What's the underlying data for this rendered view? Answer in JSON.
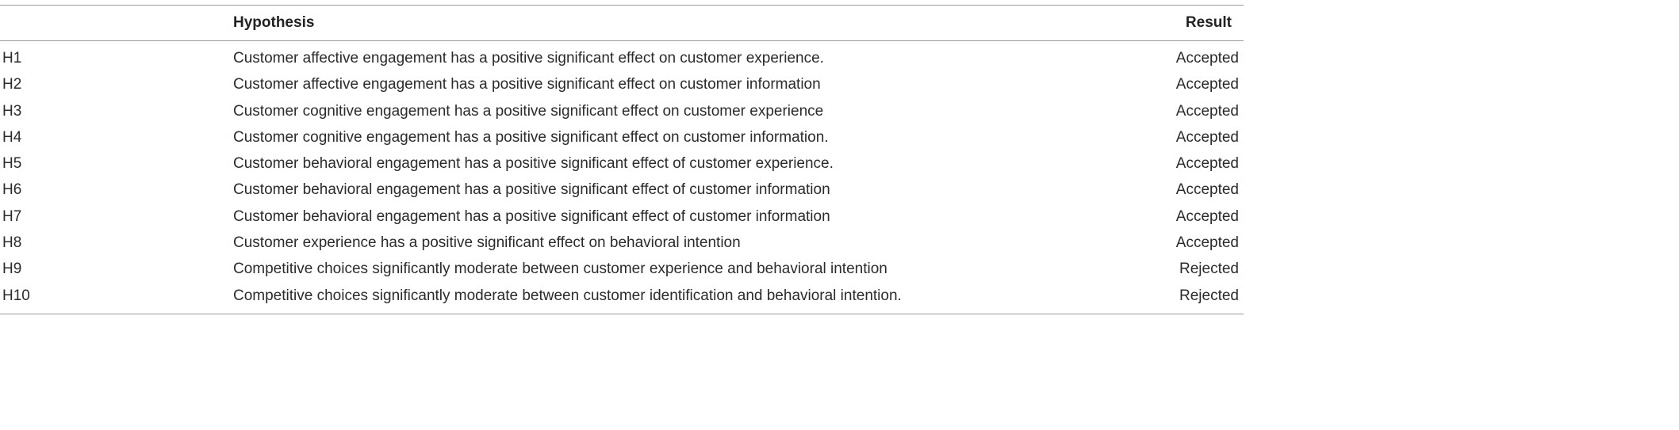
{
  "table": {
    "headers": {
      "id": "",
      "hypothesis": "Hypothesis",
      "result": "Result"
    },
    "rows": [
      {
        "id": "H1",
        "hypothesis": "Customer affective engagement has a positive significant effect on customer experience.",
        "result": "Accepted"
      },
      {
        "id": "H2",
        "hypothesis": "Customer affective engagement has a positive significant effect on customer information",
        "result": "Accepted"
      },
      {
        "id": "H3",
        "hypothesis": "Customer cognitive engagement has a positive significant effect on customer experience",
        "result": "Accepted"
      },
      {
        "id": "H4",
        "hypothesis": "Customer cognitive engagement has a positive significant effect on customer information.",
        "result": "Accepted"
      },
      {
        "id": "H5",
        "hypothesis": "Customer behavioral engagement has a positive significant effect of customer experience.",
        "result": "Accepted"
      },
      {
        "id": "H6",
        "hypothesis": "Customer behavioral engagement has a positive significant effect of customer information",
        "result": "Accepted"
      },
      {
        "id": "H7",
        "hypothesis": "Customer behavioral engagement has a positive significant effect of customer information",
        "result": "Accepted"
      },
      {
        "id": "H8",
        "hypothesis": "Customer experience has a positive significant effect on behavioral intention",
        "result": "Accepted"
      },
      {
        "id": "H9",
        "hypothesis": "Competitive choices significantly moderate between customer experience and behavioral intention",
        "result": "Rejected"
      },
      {
        "id": "H10",
        "hypothesis": "Competitive choices significantly moderate between customer identification and behavioral intention.",
        "result": "Rejected"
      }
    ]
  }
}
